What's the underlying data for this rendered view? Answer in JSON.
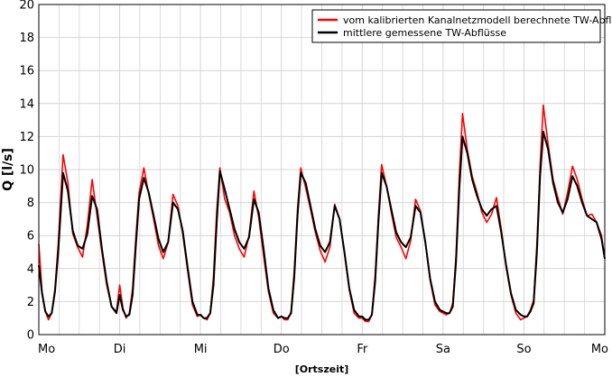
{
  "chart_data": {
    "type": "line",
    "title": "",
    "xlabel": "[Ortszeit]",
    "ylabel": "Q [l/s]",
    "ylim": [
      0,
      20
    ],
    "yticks": [
      0,
      2,
      4,
      6,
      8,
      10,
      12,
      14,
      16,
      18,
      20
    ],
    "xlim": [
      0,
      7
    ],
    "xticks": [
      {
        "value": 0,
        "label": "Mo"
      },
      {
        "value": 1,
        "label": "Di"
      },
      {
        "value": 2,
        "label": "Mi"
      },
      {
        "value": 3,
        "label": "Do"
      },
      {
        "value": 4,
        "label": "Fr"
      },
      {
        "value": 5,
        "label": "Sa"
      },
      {
        "value": 6,
        "label": "So"
      },
      {
        "value": 7,
        "label": "Mo"
      }
    ],
    "grid": true,
    "legend_position": "top-right",
    "colors": {
      "series_red": "#ff0000",
      "series_black": "#000000",
      "grid": "#d4d4d4"
    },
    "series": [
      {
        "name": "vom kalibrierten Kanalnetzmodell berechnete TW-Abflüsse",
        "color": "#ff0000",
        "x": [
          0,
          0.04,
          0.08,
          0.12,
          0.16,
          0.2,
          0.24,
          0.3,
          0.36,
          0.42,
          0.48,
          0.54,
          0.6,
          0.66,
          0.72,
          0.78,
          0.84,
          0.9,
          0.96,
          1.0,
          1.04,
          1.08,
          1.12,
          1.16,
          1.2,
          1.24,
          1.3,
          1.36,
          1.42,
          1.48,
          1.54,
          1.6,
          1.66,
          1.72,
          1.78,
          1.84,
          1.9,
          1.96,
          2.0,
          2.04,
          2.08,
          2.12,
          2.16,
          2.2,
          2.24,
          2.3,
          2.36,
          2.42,
          2.48,
          2.54,
          2.6,
          2.66,
          2.72,
          2.78,
          2.84,
          2.9,
          2.96,
          3.0,
          3.04,
          3.08,
          3.12,
          3.16,
          3.2,
          3.24,
          3.3,
          3.36,
          3.42,
          3.48,
          3.54,
          3.6,
          3.66,
          3.72,
          3.78,
          3.84,
          3.9,
          3.96,
          4.0,
          4.04,
          4.08,
          4.12,
          4.16,
          4.2,
          4.24,
          4.3,
          4.36,
          4.42,
          4.48,
          4.54,
          4.6,
          4.66,
          4.72,
          4.78,
          4.84,
          4.9,
          4.96,
          5.0,
          5.04,
          5.08,
          5.12,
          5.16,
          5.2,
          5.24,
          5.3,
          5.36,
          5.42,
          5.48,
          5.54,
          5.6,
          5.66,
          5.72,
          5.78,
          5.84,
          5.9,
          5.96,
          6.0,
          6.04,
          6.08,
          6.12,
          6.16,
          6.2,
          6.24,
          6.3,
          6.36,
          6.42,
          6.48,
          6.54,
          6.6,
          6.66,
          6.72,
          6.78,
          6.84,
          6.9,
          6.96,
          7.0
        ],
        "values": [
          5.5,
          2.6,
          1.4,
          0.9,
          1.3,
          2.8,
          5.5,
          10.9,
          9.2,
          6.1,
          5.3,
          4.7,
          6.6,
          9.4,
          7.2,
          5.0,
          3.0,
          1.7,
          1.4,
          3.0,
          1.6,
          1.0,
          1.3,
          2.8,
          5.9,
          8.6,
          10.1,
          8.5,
          7.0,
          5.4,
          4.6,
          5.6,
          8.5,
          7.8,
          6.1,
          3.9,
          1.8,
          1.1,
          1.2,
          1.0,
          0.9,
          1.3,
          3.5,
          7.5,
          10.1,
          8.2,
          7.4,
          6.0,
          5.2,
          4.7,
          6.0,
          8.7,
          7.1,
          4.8,
          2.6,
          1.3,
          1.0,
          1.1,
          0.9,
          0.9,
          1.4,
          3.9,
          7.6,
          10.1,
          8.9,
          7.6,
          6.2,
          5.1,
          4.4,
          5.3,
          7.9,
          7.0,
          4.9,
          2.7,
          1.3,
          1.0,
          1.0,
          0.8,
          0.8,
          1.2,
          3.6,
          7.2,
          10.3,
          9.0,
          7.4,
          5.9,
          5.3,
          4.6,
          5.7,
          8.2,
          7.5,
          5.6,
          3.3,
          1.8,
          1.4,
          1.3,
          1.2,
          1.3,
          1.9,
          4.8,
          9.6,
          13.4,
          11.2,
          9.6,
          8.6,
          7.4,
          6.8,
          7.3,
          8.3,
          6.4,
          4.1,
          2.4,
          1.3,
          0.9,
          1.0,
          1.1,
          1.5,
          2.1,
          5.5,
          10.2,
          13.9,
          11.5,
          9.4,
          8.3,
          7.3,
          8.6,
          10.2,
          9.4,
          8.2,
          7.2,
          7.3,
          6.8,
          6.0,
          4.6
        ]
      },
      {
        "name": "mittlere gemessene TW-Abflüsse",
        "color": "#000000",
        "x": [
          0,
          0.04,
          0.08,
          0.12,
          0.16,
          0.2,
          0.24,
          0.3,
          0.36,
          0.42,
          0.48,
          0.54,
          0.6,
          0.66,
          0.72,
          0.78,
          0.84,
          0.9,
          0.96,
          1.0,
          1.04,
          1.08,
          1.12,
          1.16,
          1.2,
          1.24,
          1.3,
          1.36,
          1.42,
          1.48,
          1.54,
          1.6,
          1.66,
          1.72,
          1.78,
          1.84,
          1.9,
          1.96,
          2.0,
          2.04,
          2.08,
          2.12,
          2.16,
          2.2,
          2.24,
          2.3,
          2.36,
          2.42,
          2.48,
          2.54,
          2.6,
          2.66,
          2.72,
          2.78,
          2.84,
          2.9,
          2.96,
          3.0,
          3.04,
          3.08,
          3.12,
          3.16,
          3.2,
          3.24,
          3.3,
          3.36,
          3.42,
          3.48,
          3.54,
          3.6,
          3.66,
          3.72,
          3.78,
          3.84,
          3.9,
          3.96,
          4.0,
          4.04,
          4.08,
          4.12,
          4.16,
          4.2,
          4.24,
          4.3,
          4.36,
          4.42,
          4.48,
          4.54,
          4.6,
          4.66,
          4.72,
          4.78,
          4.84,
          4.9,
          4.96,
          5.0,
          5.04,
          5.08,
          5.12,
          5.16,
          5.2,
          5.24,
          5.3,
          5.36,
          5.42,
          5.48,
          5.54,
          5.6,
          5.66,
          5.72,
          5.78,
          5.84,
          5.9,
          5.96,
          6.0,
          6.04,
          6.08,
          6.12,
          6.16,
          6.2,
          6.24,
          6.3,
          6.36,
          6.42,
          6.48,
          6.54,
          6.6,
          6.66,
          6.72,
          6.78,
          6.84,
          6.9,
          6.96,
          7.0
        ],
        "values": [
          4.2,
          2.5,
          1.4,
          1.1,
          1.3,
          2.6,
          5.0,
          9.8,
          8.7,
          6.3,
          5.4,
          5.2,
          6.1,
          8.4,
          7.6,
          5.2,
          3.2,
          1.7,
          1.3,
          2.4,
          1.5,
          1.1,
          1.2,
          2.4,
          5.4,
          8.2,
          9.5,
          8.6,
          7.2,
          5.8,
          5.0,
          5.6,
          8.0,
          7.6,
          6.3,
          4.1,
          2.0,
          1.2,
          1.2,
          1.0,
          1.0,
          1.3,
          3.0,
          6.8,
          9.9,
          8.8,
          7.6,
          6.4,
          5.6,
          5.2,
          5.9,
          8.2,
          7.4,
          5.2,
          2.8,
          1.5,
          1.0,
          1.1,
          1.0,
          1.0,
          1.3,
          3.5,
          7.2,
          9.8,
          9.2,
          7.8,
          6.4,
          5.4,
          5.0,
          5.6,
          7.8,
          7.0,
          5.0,
          2.8,
          1.5,
          1.1,
          1.1,
          0.9,
          0.9,
          1.2,
          3.2,
          6.8,
          9.8,
          9.0,
          7.6,
          6.2,
          5.6,
          5.3,
          5.9,
          7.8,
          7.4,
          5.6,
          3.4,
          2.0,
          1.5,
          1.4,
          1.3,
          1.3,
          1.7,
          4.4,
          8.8,
          12.0,
          11.0,
          9.4,
          8.4,
          7.6,
          7.2,
          7.6,
          7.8,
          6.2,
          4.2,
          2.5,
          1.5,
          1.2,
          1.1,
          1.1,
          1.4,
          1.9,
          5.0,
          9.6,
          12.3,
          11.2,
          9.2,
          8.0,
          7.4,
          8.2,
          9.6,
          9.0,
          8.0,
          7.2,
          7.0,
          6.8,
          5.8,
          4.6
        ]
      }
    ]
  }
}
